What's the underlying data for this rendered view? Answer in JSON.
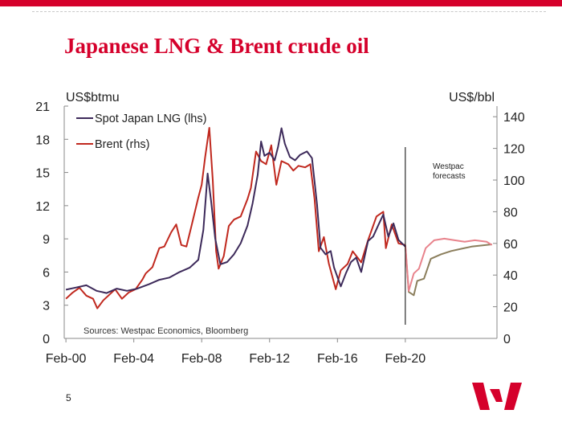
{
  "slide": {
    "title": "Japanese LNG & Brent crude oil",
    "page_number": "5",
    "brand_color": "#d5002b",
    "logo_icon": "westpac-w-logo"
  },
  "chart_data": {
    "type": "line",
    "left_axis": {
      "label": "US$btmu",
      "ticks": [
        "0",
        "3",
        "6",
        "9",
        "12",
        "15",
        "18",
        "21"
      ],
      "range": [
        0,
        21
      ]
    },
    "right_axis": {
      "label": "US$/bbl",
      "ticks": [
        "0",
        "20",
        "40",
        "60",
        "80",
        "100",
        "120",
        "140"
      ],
      "range": [
        0,
        146.7
      ]
    },
    "x_axis": {
      "ticks": [
        "Feb-00",
        "Feb-04",
        "Feb-08",
        "Feb-12",
        "Feb-16",
        "Feb-20"
      ],
      "range": [
        2000,
        2025.5
      ]
    },
    "legend": {
      "placement": "top-left"
    },
    "source_note": "Sources: Westpac Economics,  Bloomberg",
    "forecast_label": [
      "Westpac",
      "forecasts"
    ],
    "forecast_start": 2020.1,
    "series": [
      {
        "name": "Spot Japan LNG (lhs)",
        "axis": "left",
        "color": "#3d2a5a",
        "forecast_color": "#8b7e5c",
        "points": [
          [
            2000.1,
            4.4
          ],
          [
            2000.7,
            4.6
          ],
          [
            2001.3,
            4.8
          ],
          [
            2001.9,
            4.3
          ],
          [
            2002.5,
            4.1
          ],
          [
            2003.1,
            4.5
          ],
          [
            2003.7,
            4.3
          ],
          [
            2004.3,
            4.5
          ],
          [
            2005.0,
            4.9
          ],
          [
            2005.6,
            5.3
          ],
          [
            2006.2,
            5.5
          ],
          [
            2006.8,
            6.0
          ],
          [
            2007.4,
            6.4
          ],
          [
            2007.9,
            7.1
          ],
          [
            2008.2,
            9.8
          ],
          [
            2008.45,
            14.9
          ],
          [
            2008.65,
            12.5
          ],
          [
            2008.9,
            9.0
          ],
          [
            2009.2,
            6.7
          ],
          [
            2009.6,
            6.9
          ],
          [
            2010.0,
            7.6
          ],
          [
            2010.4,
            8.6
          ],
          [
            2010.8,
            10.2
          ],
          [
            2011.1,
            12.2
          ],
          [
            2011.4,
            14.8
          ],
          [
            2011.6,
            17.8
          ],
          [
            2011.8,
            16.5
          ],
          [
            2012.1,
            16.8
          ],
          [
            2012.4,
            16.1
          ],
          [
            2012.6,
            17.3
          ],
          [
            2012.8,
            19.0
          ],
          [
            2013.0,
            17.6
          ],
          [
            2013.3,
            16.4
          ],
          [
            2013.6,
            16.1
          ],
          [
            2013.9,
            16.6
          ],
          [
            2014.3,
            16.9
          ],
          [
            2014.6,
            16.3
          ],
          [
            2014.9,
            12.1
          ],
          [
            2015.1,
            8.2
          ],
          [
            2015.4,
            7.6
          ],
          [
            2015.7,
            7.9
          ],
          [
            2015.9,
            6.4
          ],
          [
            2016.3,
            4.7
          ],
          [
            2016.6,
            5.9
          ],
          [
            2016.9,
            6.9
          ],
          [
            2017.2,
            7.3
          ],
          [
            2017.5,
            6.0
          ],
          [
            2017.9,
            8.8
          ],
          [
            2018.2,
            9.2
          ],
          [
            2018.5,
            10.2
          ],
          [
            2018.8,
            11.2
          ],
          [
            2019.1,
            9.2
          ],
          [
            2019.4,
            10.4
          ],
          [
            2019.7,
            8.9
          ],
          [
            2020.1,
            8.3
          ]
        ],
        "forecast_points": [
          [
            2020.1,
            8.3
          ],
          [
            2020.3,
            4.2
          ],
          [
            2020.6,
            3.9
          ],
          [
            2020.8,
            5.2
          ],
          [
            2021.2,
            5.4
          ],
          [
            2021.6,
            7.2
          ],
          [
            2022.2,
            7.6
          ],
          [
            2022.8,
            7.9
          ],
          [
            2023.4,
            8.1
          ],
          [
            2024.0,
            8.3
          ],
          [
            2024.6,
            8.4
          ],
          [
            2025.2,
            8.5
          ]
        ]
      },
      {
        "name": "Brent (rhs)",
        "axis": "right",
        "color": "#c0281e",
        "forecast_color": "#e8838c",
        "points": [
          [
            2000.1,
            25
          ],
          [
            2000.5,
            29
          ],
          [
            2000.9,
            32
          ],
          [
            2001.3,
            27
          ],
          [
            2001.7,
            25
          ],
          [
            2001.95,
            19
          ],
          [
            2002.3,
            24
          ],
          [
            2002.7,
            28
          ],
          [
            2003.0,
            31
          ],
          [
            2003.4,
            25
          ],
          [
            2003.8,
            29
          ],
          [
            2004.2,
            31
          ],
          [
            2004.6,
            37
          ],
          [
            2004.8,
            41
          ],
          [
            2005.2,
            45
          ],
          [
            2005.6,
            57
          ],
          [
            2005.9,
            58
          ],
          [
            2006.3,
            67
          ],
          [
            2006.6,
            72
          ],
          [
            2006.9,
            59
          ],
          [
            2007.2,
            58
          ],
          [
            2007.5,
            71
          ],
          [
            2007.9,
            89
          ],
          [
            2008.1,
            97
          ],
          [
            2008.3,
            114
          ],
          [
            2008.55,
            133
          ],
          [
            2008.75,
            100
          ],
          [
            2008.95,
            55
          ],
          [
            2009.1,
            44
          ],
          [
            2009.4,
            52
          ],
          [
            2009.7,
            71
          ],
          [
            2010.0,
            75
          ],
          [
            2010.4,
            77
          ],
          [
            2010.8,
            88
          ],
          [
            2011.0,
            95
          ],
          [
            2011.3,
            118
          ],
          [
            2011.6,
            112
          ],
          [
            2011.9,
            110
          ],
          [
            2012.2,
            122
          ],
          [
            2012.5,
            97
          ],
          [
            2012.8,
            112
          ],
          [
            2013.2,
            110
          ],
          [
            2013.5,
            106
          ],
          [
            2013.8,
            109
          ],
          [
            2014.2,
            108
          ],
          [
            2014.5,
            110
          ],
          [
            2014.75,
            88
          ],
          [
            2015.0,
            55
          ],
          [
            2015.3,
            64
          ],
          [
            2015.6,
            47
          ],
          [
            2016.0,
            31
          ],
          [
            2016.3,
            43
          ],
          [
            2016.7,
            47
          ],
          [
            2017.0,
            55
          ],
          [
            2017.5,
            48
          ],
          [
            2017.9,
            62
          ],
          [
            2018.4,
            77
          ],
          [
            2018.8,
            80
          ],
          [
            2018.95,
            57
          ],
          [
            2019.3,
            72
          ],
          [
            2019.7,
            60
          ],
          [
            2020.1,
            59
          ]
        ],
        "forecast_points": [
          [
            2020.1,
            59
          ],
          [
            2020.3,
            30
          ],
          [
            2020.6,
            41
          ],
          [
            2020.9,
            44
          ],
          [
            2021.3,
            57
          ],
          [
            2021.8,
            62
          ],
          [
            2022.4,
            63
          ],
          [
            2023.0,
            62
          ],
          [
            2023.6,
            61
          ],
          [
            2024.2,
            62
          ],
          [
            2024.9,
            61
          ],
          [
            2025.2,
            59
          ]
        ]
      }
    ]
  }
}
